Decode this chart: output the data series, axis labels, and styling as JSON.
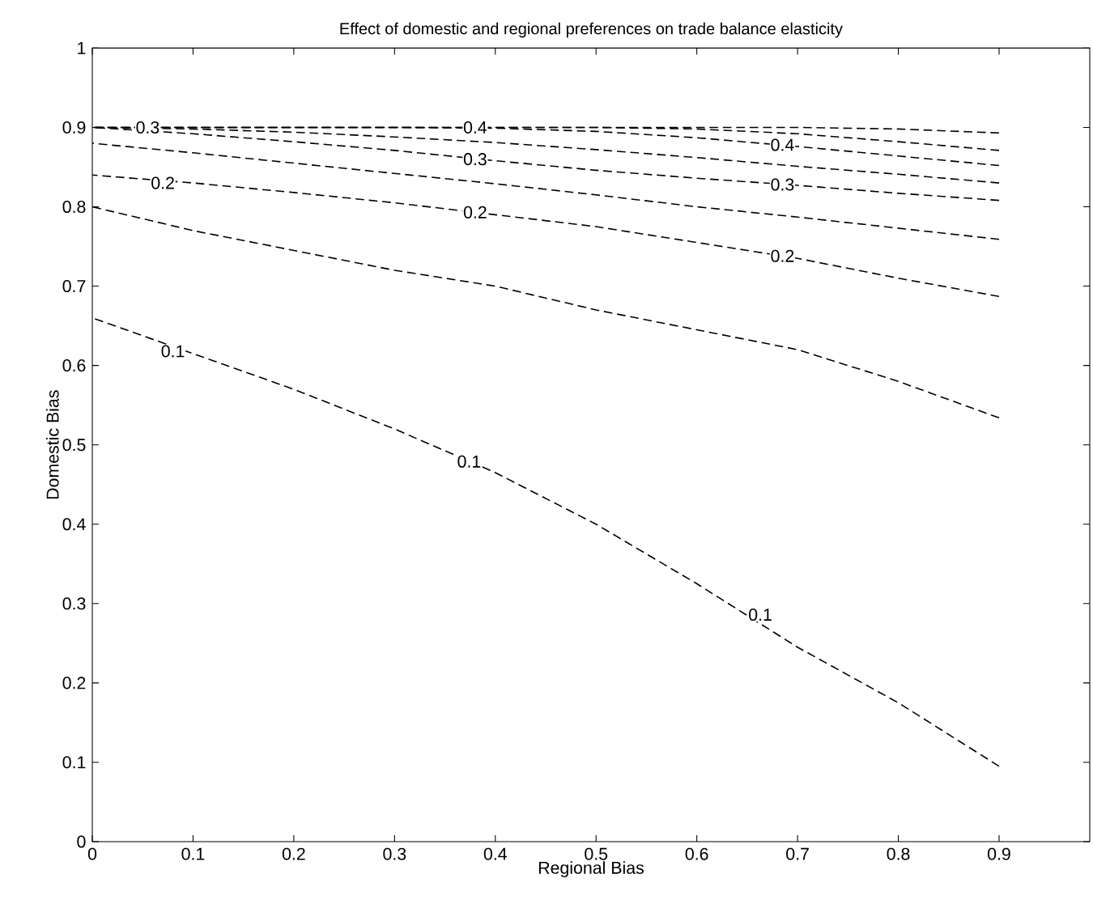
{
  "chart_data": {
    "type": "line",
    "title": "Effect of domestic and regional preferences on trade balance elasticity",
    "xlabel": "Regional Bias",
    "ylabel": "Domestic Bias",
    "x": [
      0,
      0.1,
      0.2,
      0.3,
      0.4,
      0.5,
      0.6,
      0.7,
      0.8,
      0.9
    ],
    "xlim": [
      0,
      0.99
    ],
    "ylim": [
      0,
      1
    ],
    "xticks": [
      0,
      0.1,
      0.2,
      0.3,
      0.4,
      0.5,
      0.6,
      0.7,
      0.8,
      0.9
    ],
    "yticks": [
      0,
      0.1,
      0.2,
      0.3,
      0.4,
      0.5,
      0.6,
      0.7,
      0.8,
      0.9,
      1
    ],
    "line_style": "dashed",
    "marker": "none",
    "grid": false,
    "series": [
      {
        "color": "#000000",
        "values": [
          0.66,
          0.615,
          0.57,
          0.52,
          0.465,
          0.4,
          0.325,
          0.245,
          0.175,
          0.095
        ]
      },
      {
        "color": "#000000",
        "values": [
          0.8,
          0.77,
          0.745,
          0.72,
          0.7,
          0.67,
          0.645,
          0.62,
          0.58,
          0.534
        ]
      },
      {
        "color": "#000000",
        "values": [
          0.84,
          0.83,
          0.818,
          0.805,
          0.79,
          0.775,
          0.755,
          0.735,
          0.71,
          0.687
        ]
      },
      {
        "color": "#000000",
        "values": [
          0.88,
          0.868,
          0.855,
          0.842,
          0.829,
          0.815,
          0.8,
          0.787,
          0.773,
          0.759
        ]
      },
      {
        "color": "#000000",
        "values": [
          0.9,
          0.892,
          0.882,
          0.871,
          0.858,
          0.846,
          0.836,
          0.827,
          0.817,
          0.808
        ]
      },
      {
        "color": "#000000",
        "values": [
          0.9,
          0.898,
          0.894,
          0.888,
          0.881,
          0.872,
          0.862,
          0.851,
          0.841,
          0.83
        ]
      },
      {
        "color": "#000000",
        "values": [
          0.9,
          0.9,
          0.9,
          0.9,
          0.899,
          0.895,
          0.887,
          0.876,
          0.864,
          0.852
        ]
      },
      {
        "color": "#000000",
        "values": [
          0.9,
          0.9,
          0.9,
          0.9,
          0.9,
          0.9,
          0.898,
          0.892,
          0.882,
          0.871
        ]
      },
      {
        "color": "#000000",
        "values": [
          0.9,
          0.9,
          0.9,
          0.9,
          0.9,
          0.9,
          0.9,
          0.9,
          0.898,
          0.893
        ]
      }
    ],
    "annotations": [
      {
        "text": "0.3",
        "x": 0.055,
        "y": 0.9
      },
      {
        "text": "0.4",
        "x": 0.38,
        "y": 0.9
      },
      {
        "text": "0.3",
        "x": 0.38,
        "y": 0.86
      },
      {
        "text": "0.2",
        "x": 0.07,
        "y": 0.83
      },
      {
        "text": "0.2",
        "x": 0.38,
        "y": 0.793
      },
      {
        "text": "0.4",
        "x": 0.685,
        "y": 0.878
      },
      {
        "text": "0.3",
        "x": 0.685,
        "y": 0.828
      },
      {
        "text": "0.2",
        "x": 0.685,
        "y": 0.738
      },
      {
        "text": "0.1",
        "x": 0.08,
        "y": 0.618
      },
      {
        "text": "0.1",
        "x": 0.374,
        "y": 0.479
      },
      {
        "text": "0.1",
        "x": 0.663,
        "y": 0.286
      }
    ]
  }
}
